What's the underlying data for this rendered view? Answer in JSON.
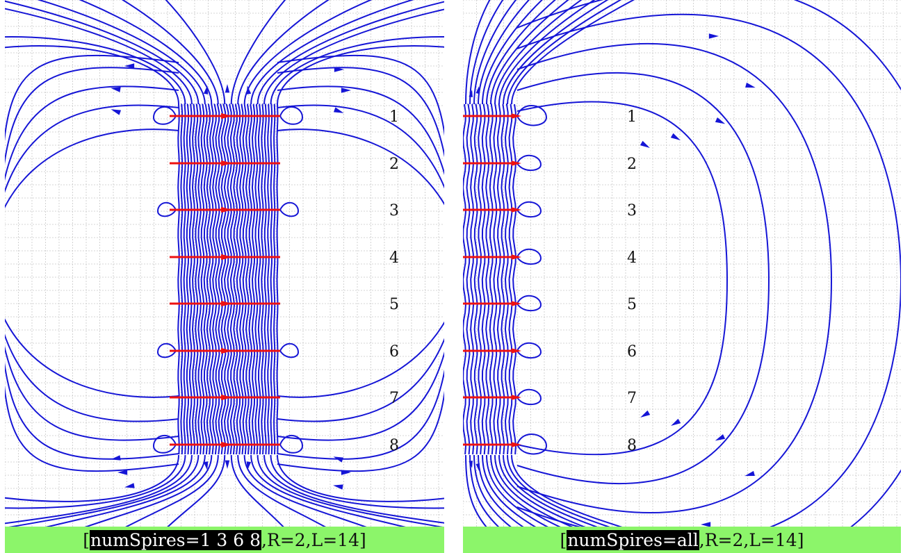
{
  "panels": [
    {
      "id": "left",
      "caption": {
        "highlight": "numSpires=1 3 6 8",
        "rest": ",R=2,L=14]",
        "open": "["
      },
      "coil_labels": [
        "1",
        "2",
        "3",
        "4",
        "5",
        "6",
        "7",
        "8"
      ],
      "active_spires": [
        1,
        3,
        6,
        8
      ]
    },
    {
      "id": "right",
      "caption": {
        "highlight": "numSpires=all",
        "rest": ",R=2,L=14]",
        "open": "["
      },
      "coil_labels": [
        "1",
        "2",
        "3",
        "4",
        "5",
        "6",
        "7",
        "8"
      ],
      "active_spires": [
        1,
        2,
        3,
        4,
        5,
        6,
        7,
        8
      ]
    }
  ],
  "colors": {
    "field_line": "#1515d6",
    "current": "#ee1111",
    "grid": "#c8c8c8",
    "caption_bg": "#8cf56a"
  }
}
